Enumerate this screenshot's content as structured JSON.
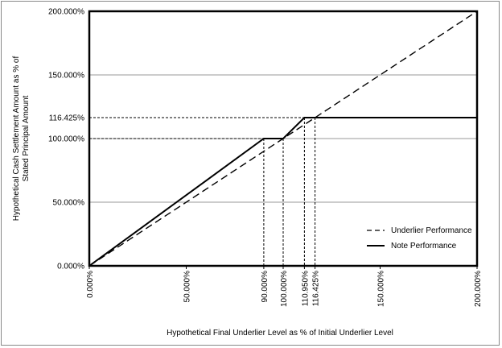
{
  "chart_data": {
    "type": "line",
    "title": "",
    "xlabel": "Hypothetical Final Underlier Level as % of Initial Underlier Level",
    "ylabel_lines": [
      "Hypothetical Cash Settlement Amount as % of",
      "Stated Principal Amount"
    ],
    "xlim": [
      0,
      200
    ],
    "ylim": [
      0,
      200
    ],
    "x_ticks": [
      0,
      50,
      90,
      100,
      110.95,
      116.425,
      150,
      200
    ],
    "x_tick_labels": [
      "0.000%",
      "50.000%",
      "90.000%",
      "100.000%",
      "110.950%",
      "116.425%",
      "150.000%",
      "200.000%"
    ],
    "y_ticks": [
      0,
      50,
      100,
      116.425,
      150,
      200
    ],
    "y_tick_labels": [
      "0.000%",
      "50.000%",
      "100.000%",
      "116.425%",
      "150.000%",
      "200.000%"
    ],
    "grid": "horizontal",
    "legend_position": "bottom-right",
    "series": [
      {
        "name": "Underlier Performance",
        "style": "dashed",
        "x": [
          0,
          200
        ],
        "y": [
          0,
          200
        ]
      },
      {
        "name": "Note Performance",
        "style": "solid",
        "x": [
          0,
          90,
          100,
          110.95,
          200
        ],
        "y": [
          0,
          100,
          100,
          116.425,
          116.425
        ]
      }
    ],
    "reference_lines": [
      {
        "x": 90,
        "y": 100
      },
      {
        "x": 100,
        "y": 100
      },
      {
        "x": 110.95,
        "y": 116.425
      },
      {
        "x": 116.425,
        "y": 116.425
      }
    ]
  }
}
